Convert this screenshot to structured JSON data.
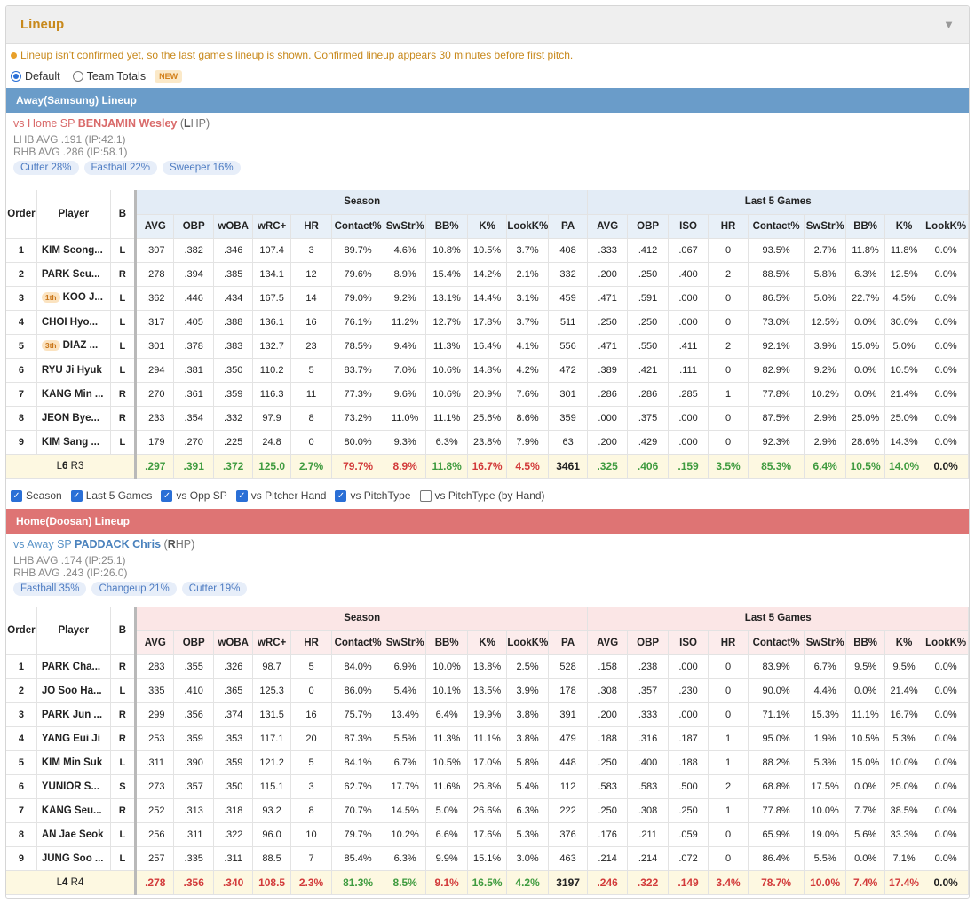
{
  "panel": {
    "title": "Lineup",
    "collapse_icon": "triangle-down-icon"
  },
  "notice": "Lineup isn't confirmed yet, so the last game's lineup is shown. Confirmed lineup appears 30 minutes before first pitch.",
  "view_options": {
    "default_label": "Default",
    "team_totals_label": "Team Totals",
    "new_badge": "NEW",
    "selected": "Default"
  },
  "headers": {
    "order": "Order",
    "player": "Player",
    "bats": "B",
    "season_group": "Season",
    "last5_group": "Last 5 Games",
    "season_cols": [
      "AVG",
      "OBP",
      "wOBA",
      "wRC+",
      "HR",
      "Contact%",
      "SwStr%",
      "BB%",
      "K%",
      "LookK%",
      "PA"
    ],
    "last5_cols": [
      "AVG",
      "OBP",
      "ISO",
      "HR",
      "Contact%",
      "SwStr%",
      "BB%",
      "K%",
      "LookK%"
    ]
  },
  "away": {
    "title": "Away(Samsung) Lineup",
    "sp_prefix": "vs Home SP",
    "sp_name": "BENJAMIN Wesley",
    "sp_hand_open": "(",
    "sp_hand_letter": "L",
    "sp_hand_rest": "HP)",
    "lhb_avg": "LHB AVG .191 (IP:42.1)",
    "rhb_avg": "RHB AVG .286 (IP:58.1)",
    "pitch_tags": [
      "Cutter 28%",
      "Fastball 22%",
      "Sweeper 16%"
    ],
    "rows": [
      {
        "order": "1",
        "rank": "",
        "name": "KIM Seong...",
        "bats": "L",
        "season": [
          ".307",
          ".382",
          ".346",
          "107.4",
          "3",
          "89.7%",
          "4.6%",
          "10.8%",
          "10.5%",
          "3.7%",
          "408"
        ],
        "last5": [
          ".333",
          ".412",
          ".067",
          "0",
          "93.5%",
          "2.7%",
          "11.8%",
          "11.8%",
          "0.0%"
        ]
      },
      {
        "order": "2",
        "rank": "",
        "name": "PARK Seu...",
        "bats": "R",
        "season": [
          ".278",
          ".394",
          ".385",
          "134.1",
          "12",
          "79.6%",
          "8.9%",
          "15.4%",
          "14.2%",
          "2.1%",
          "332"
        ],
        "last5": [
          ".200",
          ".250",
          ".400",
          "2",
          "88.5%",
          "5.8%",
          "6.3%",
          "12.5%",
          "0.0%"
        ]
      },
      {
        "order": "3",
        "rank": "1th",
        "name": "KOO J...",
        "bats": "L",
        "season": [
          ".362",
          ".446",
          ".434",
          "167.5",
          "14",
          "79.0%",
          "9.2%",
          "13.1%",
          "14.4%",
          "3.1%",
          "459"
        ],
        "last5": [
          ".471",
          ".591",
          ".000",
          "0",
          "86.5%",
          "5.0%",
          "22.7%",
          "4.5%",
          "0.0%"
        ]
      },
      {
        "order": "4",
        "rank": "",
        "name": "CHOI Hyo...",
        "bats": "L",
        "season": [
          ".317",
          ".405",
          ".388",
          "136.1",
          "16",
          "76.1%",
          "11.2%",
          "12.7%",
          "17.8%",
          "3.7%",
          "511"
        ],
        "last5": [
          ".250",
          ".250",
          ".000",
          "0",
          "73.0%",
          "12.5%",
          "0.0%",
          "30.0%",
          "0.0%"
        ]
      },
      {
        "order": "5",
        "rank": "3th",
        "name": "DIAZ ...",
        "bats": "L",
        "season": [
          ".301",
          ".378",
          ".383",
          "132.7",
          "23",
          "78.5%",
          "9.4%",
          "11.3%",
          "16.4%",
          "4.1%",
          "556"
        ],
        "last5": [
          ".471",
          ".550",
          ".411",
          "2",
          "92.1%",
          "3.9%",
          "15.0%",
          "5.0%",
          "0.0%"
        ]
      },
      {
        "order": "6",
        "rank": "",
        "name": "RYU Ji Hyuk",
        "bats": "L",
        "season": [
          ".294",
          ".381",
          ".350",
          "110.2",
          "5",
          "83.7%",
          "7.0%",
          "10.6%",
          "14.8%",
          "4.2%",
          "472"
        ],
        "last5": [
          ".389",
          ".421",
          ".111",
          "0",
          "82.9%",
          "9.2%",
          "0.0%",
          "10.5%",
          "0.0%"
        ]
      },
      {
        "order": "7",
        "rank": "",
        "name": "KANG Min ...",
        "bats": "R",
        "season": [
          ".270",
          ".361",
          ".359",
          "116.3",
          "11",
          "77.3%",
          "9.6%",
          "10.6%",
          "20.9%",
          "7.6%",
          "301"
        ],
        "last5": [
          ".286",
          ".286",
          ".285",
          "1",
          "77.8%",
          "10.2%",
          "0.0%",
          "21.4%",
          "0.0%"
        ]
      },
      {
        "order": "8",
        "rank": "",
        "name": "JEON Bye...",
        "bats": "R",
        "season": [
          ".233",
          ".354",
          ".332",
          "97.9",
          "8",
          "73.2%",
          "11.0%",
          "11.1%",
          "25.6%",
          "8.6%",
          "359"
        ],
        "last5": [
          ".000",
          ".375",
          ".000",
          "0",
          "87.5%",
          "2.9%",
          "25.0%",
          "25.0%",
          "0.0%"
        ]
      },
      {
        "order": "9",
        "rank": "",
        "name": "KIM Sang ...",
        "bats": "L",
        "season": [
          ".179",
          ".270",
          ".225",
          "24.8",
          "0",
          "80.0%",
          "9.3%",
          "6.3%",
          "23.8%",
          "7.9%",
          "63"
        ],
        "last5": [
          ".200",
          ".429",
          ".000",
          "0",
          "92.3%",
          "2.9%",
          "28.6%",
          "14.3%",
          "0.0%"
        ]
      }
    ],
    "totals": {
      "lr_l": "L",
      "lr_l_count": "6",
      "lr_r": "R",
      "lr_r_count": "3",
      "season": [
        ".297",
        ".391",
        ".372",
        "125.0",
        "2.7%",
        "79.7%",
        "8.9%",
        "11.8%",
        "16.7%",
        "4.5%",
        "3461"
      ],
      "season_colors": [
        "g",
        "g",
        "g",
        "g",
        "g",
        "r",
        "r",
        "g",
        "r",
        "r",
        "k"
      ],
      "last5": [
        ".325",
        ".406",
        ".159",
        "3.5%",
        "85.3%",
        "6.4%",
        "10.5%",
        "14.0%",
        "0.0%"
      ],
      "last5_colors": [
        "g",
        "g",
        "g",
        "g",
        "g",
        "g",
        "g",
        "g",
        "k"
      ]
    }
  },
  "filters": [
    {
      "label": "Season",
      "checked": true
    },
    {
      "label": "Last 5 Games",
      "checked": true
    },
    {
      "label": "vs Opp SP",
      "checked": true
    },
    {
      "label": "vs Pitcher Hand",
      "checked": true
    },
    {
      "label": "vs PitchType",
      "checked": true
    },
    {
      "label": "vs PitchType (by Hand)",
      "checked": false
    }
  ],
  "home": {
    "title": "Home(Doosan) Lineup",
    "sp_prefix": "vs Away SP",
    "sp_name": "PADDACK Chris",
    "sp_hand_open": "(",
    "sp_hand_letter": "R",
    "sp_hand_rest": "HP)",
    "lhb_avg": "LHB AVG .174 (IP:25.1)",
    "rhb_avg": "RHB AVG .243 (IP:26.0)",
    "pitch_tags": [
      "Fastball 35%",
      "Changeup 21%",
      "Cutter 19%"
    ],
    "rows": [
      {
        "order": "1",
        "rank": "",
        "name": "PARK Cha...",
        "bats": "R",
        "season": [
          ".283",
          ".355",
          ".326",
          "98.7",
          "5",
          "84.0%",
          "6.9%",
          "10.0%",
          "13.8%",
          "2.5%",
          "528"
        ],
        "last5": [
          ".158",
          ".238",
          ".000",
          "0",
          "83.9%",
          "6.7%",
          "9.5%",
          "9.5%",
          "0.0%"
        ]
      },
      {
        "order": "2",
        "rank": "",
        "name": "JO Soo Ha...",
        "bats": "L",
        "season": [
          ".335",
          ".410",
          ".365",
          "125.3",
          "0",
          "86.0%",
          "5.4%",
          "10.1%",
          "13.5%",
          "3.9%",
          "178"
        ],
        "last5": [
          ".308",
          ".357",
          ".230",
          "0",
          "90.0%",
          "4.4%",
          "0.0%",
          "21.4%",
          "0.0%"
        ]
      },
      {
        "order": "3",
        "rank": "",
        "name": "PARK Jun ...",
        "bats": "R",
        "season": [
          ".299",
          ".356",
          ".374",
          "131.5",
          "16",
          "75.7%",
          "13.4%",
          "6.4%",
          "19.9%",
          "3.8%",
          "391"
        ],
        "last5": [
          ".200",
          ".333",
          ".000",
          "0",
          "71.1%",
          "15.3%",
          "11.1%",
          "16.7%",
          "0.0%"
        ]
      },
      {
        "order": "4",
        "rank": "",
        "name": "YANG Eui Ji",
        "bats": "R",
        "season": [
          ".253",
          ".359",
          ".353",
          "117.1",
          "20",
          "87.3%",
          "5.5%",
          "11.3%",
          "11.1%",
          "3.8%",
          "479"
        ],
        "last5": [
          ".188",
          ".316",
          ".187",
          "1",
          "95.0%",
          "1.9%",
          "10.5%",
          "5.3%",
          "0.0%"
        ]
      },
      {
        "order": "5",
        "rank": "",
        "name": "KIM Min Suk",
        "bats": "L",
        "season": [
          ".311",
          ".390",
          ".359",
          "121.2",
          "5",
          "84.1%",
          "6.7%",
          "10.5%",
          "17.0%",
          "5.8%",
          "448"
        ],
        "last5": [
          ".250",
          ".400",
          ".188",
          "1",
          "88.2%",
          "5.3%",
          "15.0%",
          "10.0%",
          "0.0%"
        ]
      },
      {
        "order": "6",
        "rank": "",
        "name": "YUNIOR S...",
        "bats": "S",
        "season": [
          ".273",
          ".357",
          ".350",
          "115.1",
          "3",
          "62.7%",
          "17.7%",
          "11.6%",
          "26.8%",
          "5.4%",
          "112"
        ],
        "last5": [
          ".583",
          ".583",
          ".500",
          "2",
          "68.8%",
          "17.5%",
          "0.0%",
          "25.0%",
          "0.0%"
        ]
      },
      {
        "order": "7",
        "rank": "",
        "name": "KANG Seu...",
        "bats": "R",
        "season": [
          ".252",
          ".313",
          ".318",
          "93.2",
          "8",
          "70.7%",
          "14.5%",
          "5.0%",
          "26.6%",
          "6.3%",
          "222"
        ],
        "last5": [
          ".250",
          ".308",
          ".250",
          "1",
          "77.8%",
          "10.0%",
          "7.7%",
          "38.5%",
          "0.0%"
        ]
      },
      {
        "order": "8",
        "rank": "",
        "name": "AN Jae Seok",
        "bats": "L",
        "season": [
          ".256",
          ".311",
          ".322",
          "96.0",
          "10",
          "79.7%",
          "10.2%",
          "6.6%",
          "17.6%",
          "5.3%",
          "376"
        ],
        "last5": [
          ".176",
          ".211",
          ".059",
          "0",
          "65.9%",
          "19.0%",
          "5.6%",
          "33.3%",
          "0.0%"
        ]
      },
      {
        "order": "9",
        "rank": "",
        "name": "JUNG Soo ...",
        "bats": "L",
        "season": [
          ".257",
          ".335",
          ".311",
          "88.5",
          "7",
          "85.4%",
          "6.3%",
          "9.9%",
          "15.1%",
          "3.0%",
          "463"
        ],
        "last5": [
          ".214",
          ".214",
          ".072",
          "0",
          "86.4%",
          "5.5%",
          "0.0%",
          "7.1%",
          "0.0%"
        ]
      }
    ],
    "totals": {
      "lr_l": "L",
      "lr_l_count": "4",
      "lr_r": "R",
      "lr_r_count": "4",
      "season": [
        ".278",
        ".356",
        ".340",
        "108.5",
        "2.3%",
        "81.3%",
        "8.5%",
        "9.1%",
        "16.5%",
        "4.2%",
        "3197"
      ],
      "season_colors": [
        "r",
        "r",
        "r",
        "r",
        "r",
        "g",
        "g",
        "r",
        "g",
        "g",
        "k"
      ],
      "last5": [
        ".246",
        ".322",
        ".149",
        "3.4%",
        "78.7%",
        "10.0%",
        "7.4%",
        "17.4%",
        "0.0%"
      ],
      "last5_colors": [
        "r",
        "r",
        "r",
        "r",
        "r",
        "r",
        "r",
        "r",
        "k"
      ]
    }
  },
  "colors": {
    "accent": "#c8891c",
    "away_bar": "#6a9cc9",
    "home_bar": "#de7474",
    "good": "#3f9b3f",
    "bad": "#d23a3a"
  }
}
